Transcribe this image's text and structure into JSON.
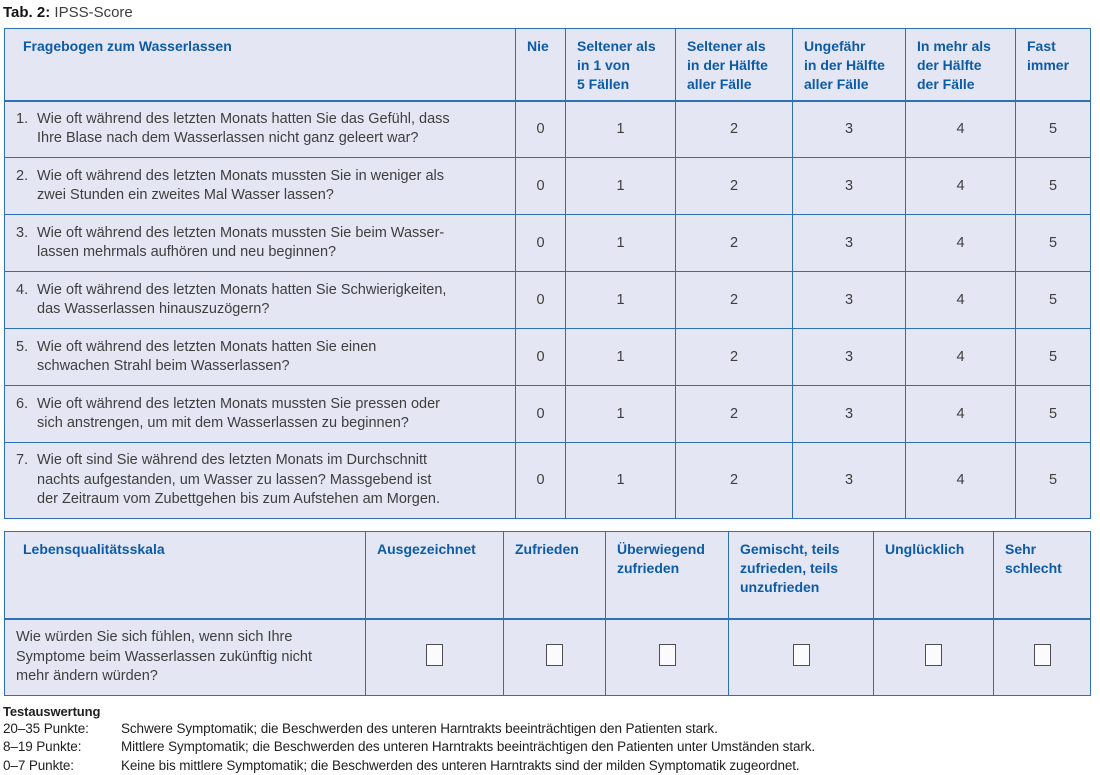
{
  "caption": {
    "label": "Tab. 2:",
    "title": "IPSS-Score"
  },
  "ipss_table": {
    "headers": [
      "Fragebogen zum Wasserlassen",
      "Nie",
      "Seltener als\nin 1 von\n5 Fällen",
      "Seltener als\nin der Hälfte\naller Fälle",
      "Ungefähr\nin der Hälfte\naller Fälle",
      "In mehr als\nder Hälfte\nder Fälle",
      "Fast\nimmer"
    ],
    "rows": [
      {
        "num": "1.",
        "question": "Wie oft während des letzten Monats hatten Sie das Gefühl, dass\nIhre Blase nach dem Wasserlassen nicht ganz geleert war?",
        "scores": [
          "0",
          "1",
          "2",
          "3",
          "4",
          "5"
        ]
      },
      {
        "num": "2.",
        "question": "Wie oft während des letzten Monats mussten Sie in weniger als\nzwei Stunden ein zweites Mal Wasser lassen?",
        "scores": [
          "0",
          "1",
          "2",
          "3",
          "4",
          "5"
        ]
      },
      {
        "num": "3.",
        "question": "Wie oft während des letzten Monats mussten Sie beim Wasser-\nlassen mehrmals aufhören und neu beginnen?",
        "scores": [
          "0",
          "1",
          "2",
          "3",
          "4",
          "5"
        ]
      },
      {
        "num": "4.",
        "question": "Wie oft während des letzten Monats hatten Sie Schwierigkeiten,\ndas Wasserlassen hinauszuzögern?",
        "scores": [
          "0",
          "1",
          "2",
          "3",
          "4",
          "5"
        ]
      },
      {
        "num": "5.",
        "question": "Wie oft während des letzten Monats hatten Sie einen\nschwachen Strahl beim Wasserlassen?",
        "scores": [
          "0",
          "1",
          "2",
          "3",
          "4",
          "5"
        ]
      },
      {
        "num": "6.",
        "question": "Wie oft während des letzten Monats mussten Sie pressen oder\nsich anstrengen, um mit dem Wasserlassen zu beginnen?",
        "scores": [
          "0",
          "1",
          "2",
          "3",
          "4",
          "5"
        ]
      },
      {
        "num": "7.",
        "question": "Wie oft sind Sie während des letzten Monats im Durchschnitt\nnachts aufgestanden, um Wasser zu lassen? Massgebend ist\nder Zeitraum vom Zubettgehen bis zum Aufstehen am Morgen.",
        "scores": [
          "0",
          "1",
          "2",
          "3",
          "4",
          "5"
        ]
      }
    ]
  },
  "qol_table": {
    "headers": [
      "Lebensqualitätsskala",
      "Ausgezeichnet",
      "Zufrieden",
      "Überwiegend\nzufrieden",
      "Gemischt, teils\nzufrieden, teils\nunzufrieden",
      "Unglücklich",
      "Sehr\nschlecht"
    ],
    "question": "Wie würden Sie sich fühlen, wenn sich Ihre\nSymptome beim Wasserlassen zukünftig nicht\nmehr ändern würden?"
  },
  "evaluation": {
    "title": "Testauswertung",
    "items": [
      {
        "range": "20–35 Punkte:",
        "text": "Schwere Symptomatik; die Beschwerden des unteren Harntrakts beeinträchtigen den Patienten stark."
      },
      {
        "range": "8–19 Punkte:",
        "text": "Mittlere Symptomatik; die Beschwerden des unteren Harntrakts beeinträchtigen den Patienten unter Umständen stark."
      },
      {
        "range": "0–7 Punkte:",
        "text": "Keine bis mittlere Symptomatik; die Beschwerden des unteren Harntrakts sind der milden Symptomatik zugeordnet."
      }
    ]
  },
  "colors": {
    "table_background": "#e4e7f3",
    "table_border": "#2f6fb4",
    "header_text": "#0d5ba8",
    "body_text": "#3e3e3e"
  }
}
